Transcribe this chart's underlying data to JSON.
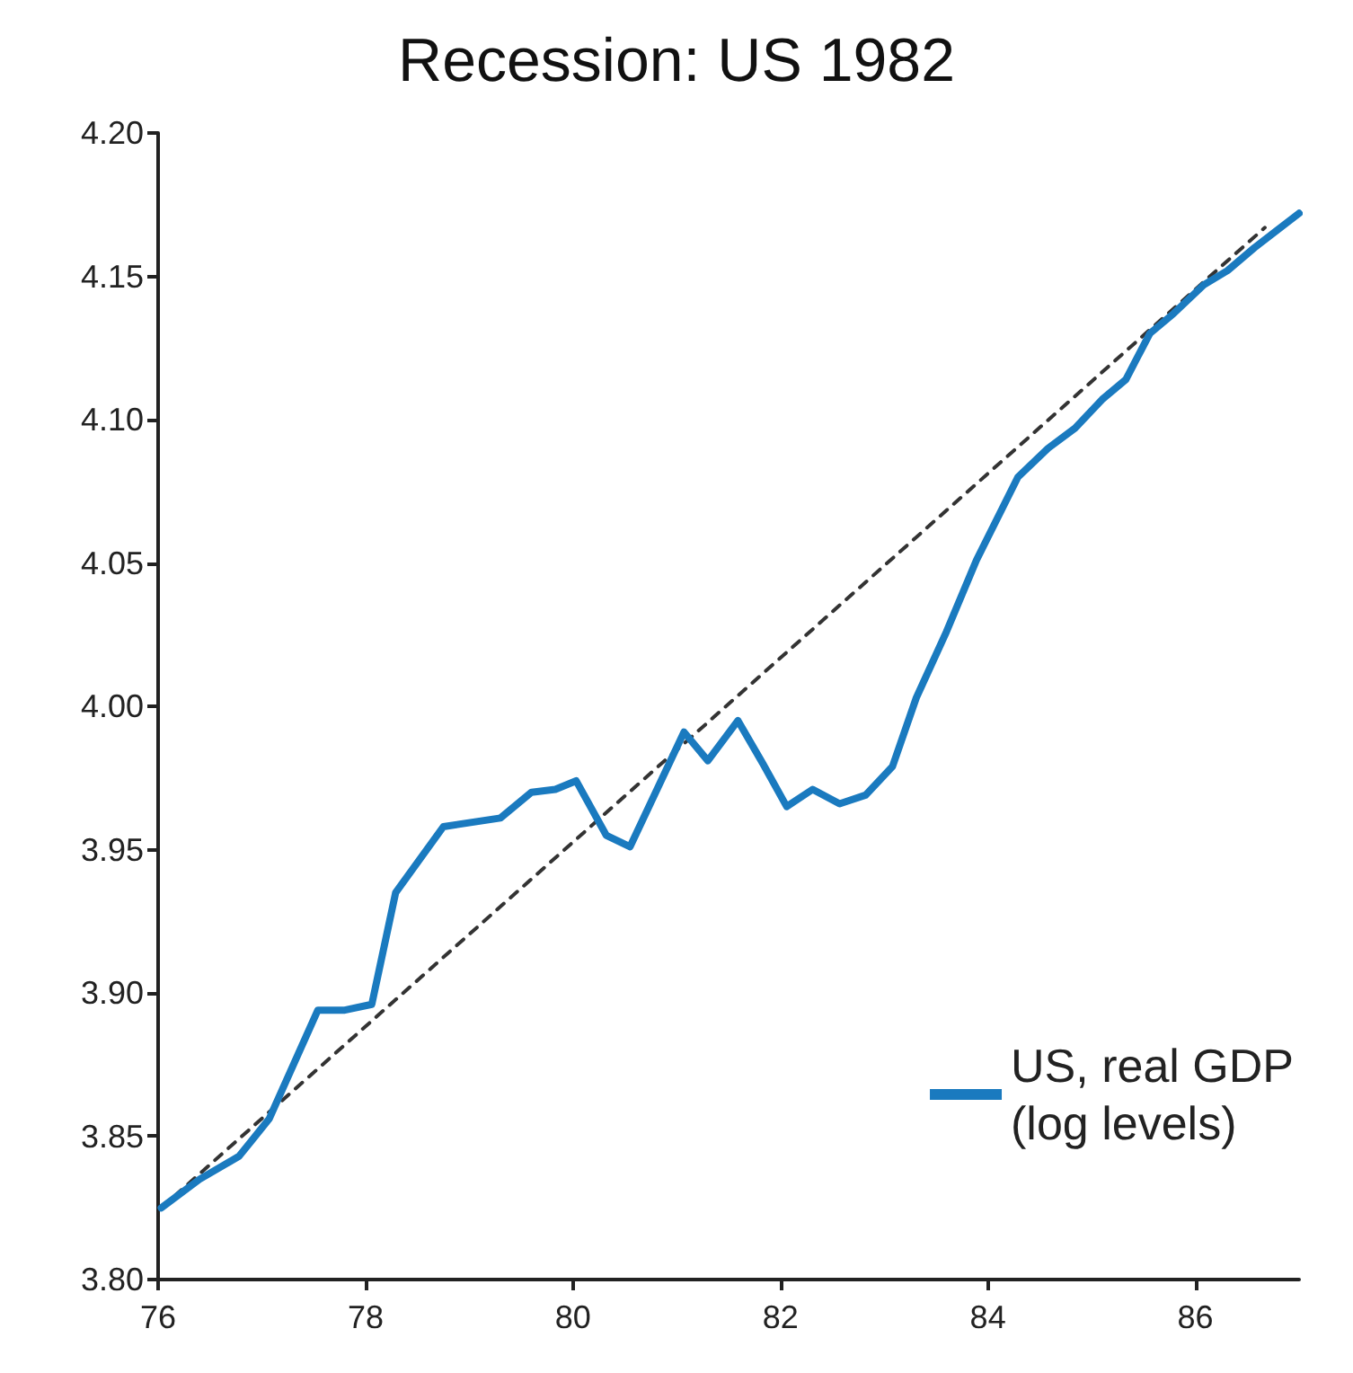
{
  "chart_data": {
    "type": "line",
    "title": "Recession: US 1982",
    "xlim": [
      76,
      87
    ],
    "xticks": [
      76,
      78,
      80,
      82,
      84,
      86
    ],
    "ylim": [
      3.8,
      4.2
    ],
    "yticks": [
      {
        "value": 3.8,
        "label": "3.80"
      },
      {
        "value": 3.85,
        "label": "3.85"
      },
      {
        "value": 3.9,
        "label": "3.90"
      },
      {
        "value": 3.95,
        "label": "3.95"
      },
      {
        "value": 4.0,
        "label": "4.00"
      },
      {
        "value": 4.05,
        "label": "4.05"
      },
      {
        "value": 4.1,
        "label": "4.10"
      },
      {
        "value": 4.15,
        "label": "4.15"
      },
      {
        "value": 4.2,
        "label": "4.20"
      }
    ],
    "grid": false,
    "legend": "bottom right",
    "marker": "none",
    "series": [
      {
        "name": "US, real GDP\n(log levels)",
        "color": "#1a7abf",
        "line_style": "solid",
        "x": [
          76.03,
          76.4,
          76.78,
          77.07,
          77.54,
          77.8,
          78.06,
          78.29,
          78.75,
          79.3,
          79.6,
          79.83,
          80.03,
          80.32,
          80.55,
          81.07,
          81.3,
          81.59,
          81.83,
          82.06,
          82.31,
          82.57,
          82.82,
          83.08,
          83.31,
          83.6,
          83.89,
          84.29,
          84.58,
          84.84,
          85.1,
          85.33,
          85.56,
          85.79,
          86.08,
          86.31,
          86.57,
          87.0
        ],
        "values": [
          3.825,
          3.835,
          3.843,
          3.856,
          3.894,
          3.894,
          3.896,
          3.935,
          3.958,
          3.961,
          3.97,
          3.971,
          3.974,
          3.955,
          3.951,
          3.991,
          3.981,
          3.995,
          3.98,
          3.965,
          3.971,
          3.966,
          3.969,
          3.979,
          4.003,
          4.026,
          4.051,
          4.08,
          4.09,
          4.097,
          4.107,
          4.114,
          4.13,
          4.137,
          4.147,
          4.152,
          4.16,
          4.172
        ]
      },
      {
        "type": "line",
        "color": "#333333",
        "line_style": "dashed",
        "x": [
          76.03,
          86.67
        ],
        "values": [
          3.825,
          4.167
        ]
      }
    ]
  }
}
